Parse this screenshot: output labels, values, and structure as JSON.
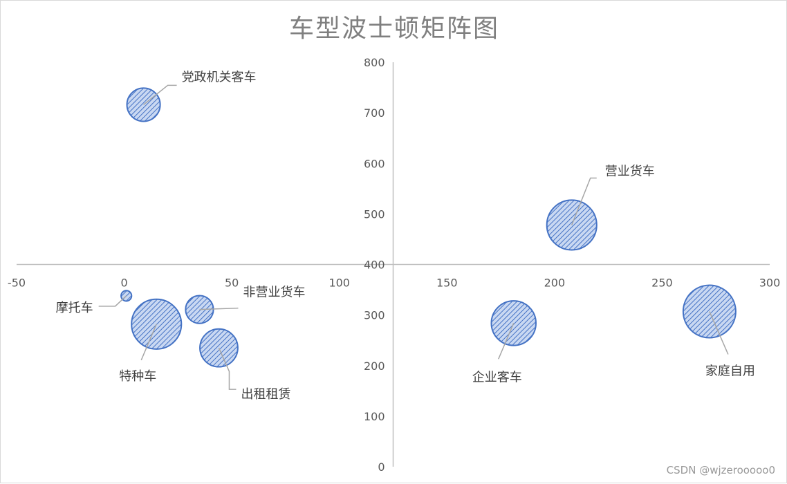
{
  "chart_data": {
    "type": "scatter",
    "title": "车型波士顿矩阵图",
    "xlabel": "",
    "ylabel": "",
    "xlim": [
      -50,
      300
    ],
    "ylim": [
      0,
      800
    ],
    "x_axis_crosses_y_at": 400,
    "y_axis_crosses_x_at": 125,
    "xticks": [
      -50,
      0,
      50,
      100,
      150,
      200,
      250,
      300
    ],
    "yticks": [
      0,
      100,
      200,
      300,
      400,
      500,
      600,
      700,
      800
    ],
    "legend": "none",
    "grid": false,
    "points": [
      {
        "label": "党政机关客车",
        "x": 9,
        "y": 716,
        "size": 2.0
      },
      {
        "label": "营业货车",
        "x": 208,
        "y": 478,
        "size": 4.5
      },
      {
        "label": "摩托车",
        "x": 1,
        "y": 338,
        "size": 0.2
      },
      {
        "label": "非营业货车",
        "x": 35,
        "y": 311,
        "size": 1.4
      },
      {
        "label": "特种车",
        "x": 15,
        "y": 282,
        "size": 4.5
      },
      {
        "label": "出租租赁",
        "x": 44,
        "y": 235,
        "size": 2.6
      },
      {
        "label": "企业客车",
        "x": 181,
        "y": 284,
        "size": 3.6
      },
      {
        "label": "家庭自用",
        "x": 272,
        "y": 307,
        "size": 5.0
      }
    ],
    "colors": {
      "bubble_fill": "#c9d8f2",
      "bubble_stroke": "#4472c4",
      "hatch": "#4472c4",
      "axis": "#bfbfbf",
      "leader": "#a6a6a6"
    }
  },
  "watermark": "CSDN @wjzerooooo0"
}
